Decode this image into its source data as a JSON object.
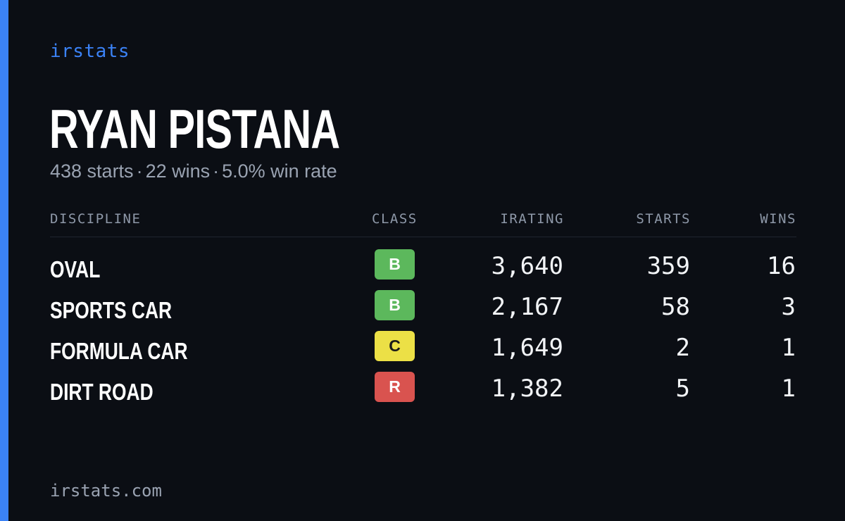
{
  "brand": "irstats",
  "driver": {
    "name": "RYAN PISTANA",
    "starts_text": "438 starts",
    "wins_text": "22 wins",
    "win_rate_text": "5.0% win rate",
    "separator": "·"
  },
  "table": {
    "headers": {
      "discipline": "DISCIPLINE",
      "class": "CLASS",
      "irating": "IRATING",
      "starts": "STARTS",
      "wins": "WINS"
    },
    "rows": [
      {
        "discipline": "OVAL",
        "class": "B",
        "class_color": "#5cb85c",
        "class_text_color": "#ffffff",
        "irating": "3,640",
        "starts": "359",
        "wins": "16"
      },
      {
        "discipline": "SPORTS CAR",
        "class": "B",
        "class_color": "#5cb85c",
        "class_text_color": "#ffffff",
        "irating": "2,167",
        "starts": "58",
        "wins": "3"
      },
      {
        "discipline": "FORMULA CAR",
        "class": "C",
        "class_color": "#ece046",
        "class_text_color": "#1a1a1a",
        "irating": "1,649",
        "starts": "2",
        "wins": "1"
      },
      {
        "discipline": "DIRT ROAD",
        "class": "R",
        "class_color": "#d9534f",
        "class_text_color": "#ffffff",
        "irating": "1,382",
        "starts": "5",
        "wins": "1"
      }
    ]
  },
  "footer": {
    "url": "irstats.com"
  },
  "colors": {
    "accent": "#3b82f6",
    "background": "#0b0e14",
    "muted": "#9aa3b2"
  }
}
